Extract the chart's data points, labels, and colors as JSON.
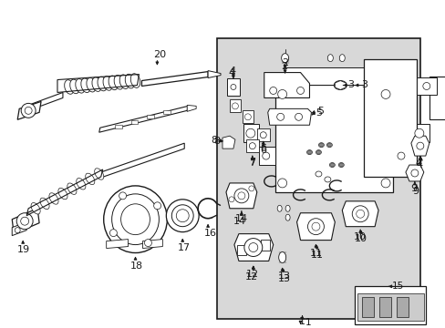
{
  "bg_color": "#ffffff",
  "diagram_bg": "#d8d8d8",
  "line_color": "#1a1a1a",
  "fig_width": 4.89,
  "fig_height": 3.6,
  "dpi": 100
}
